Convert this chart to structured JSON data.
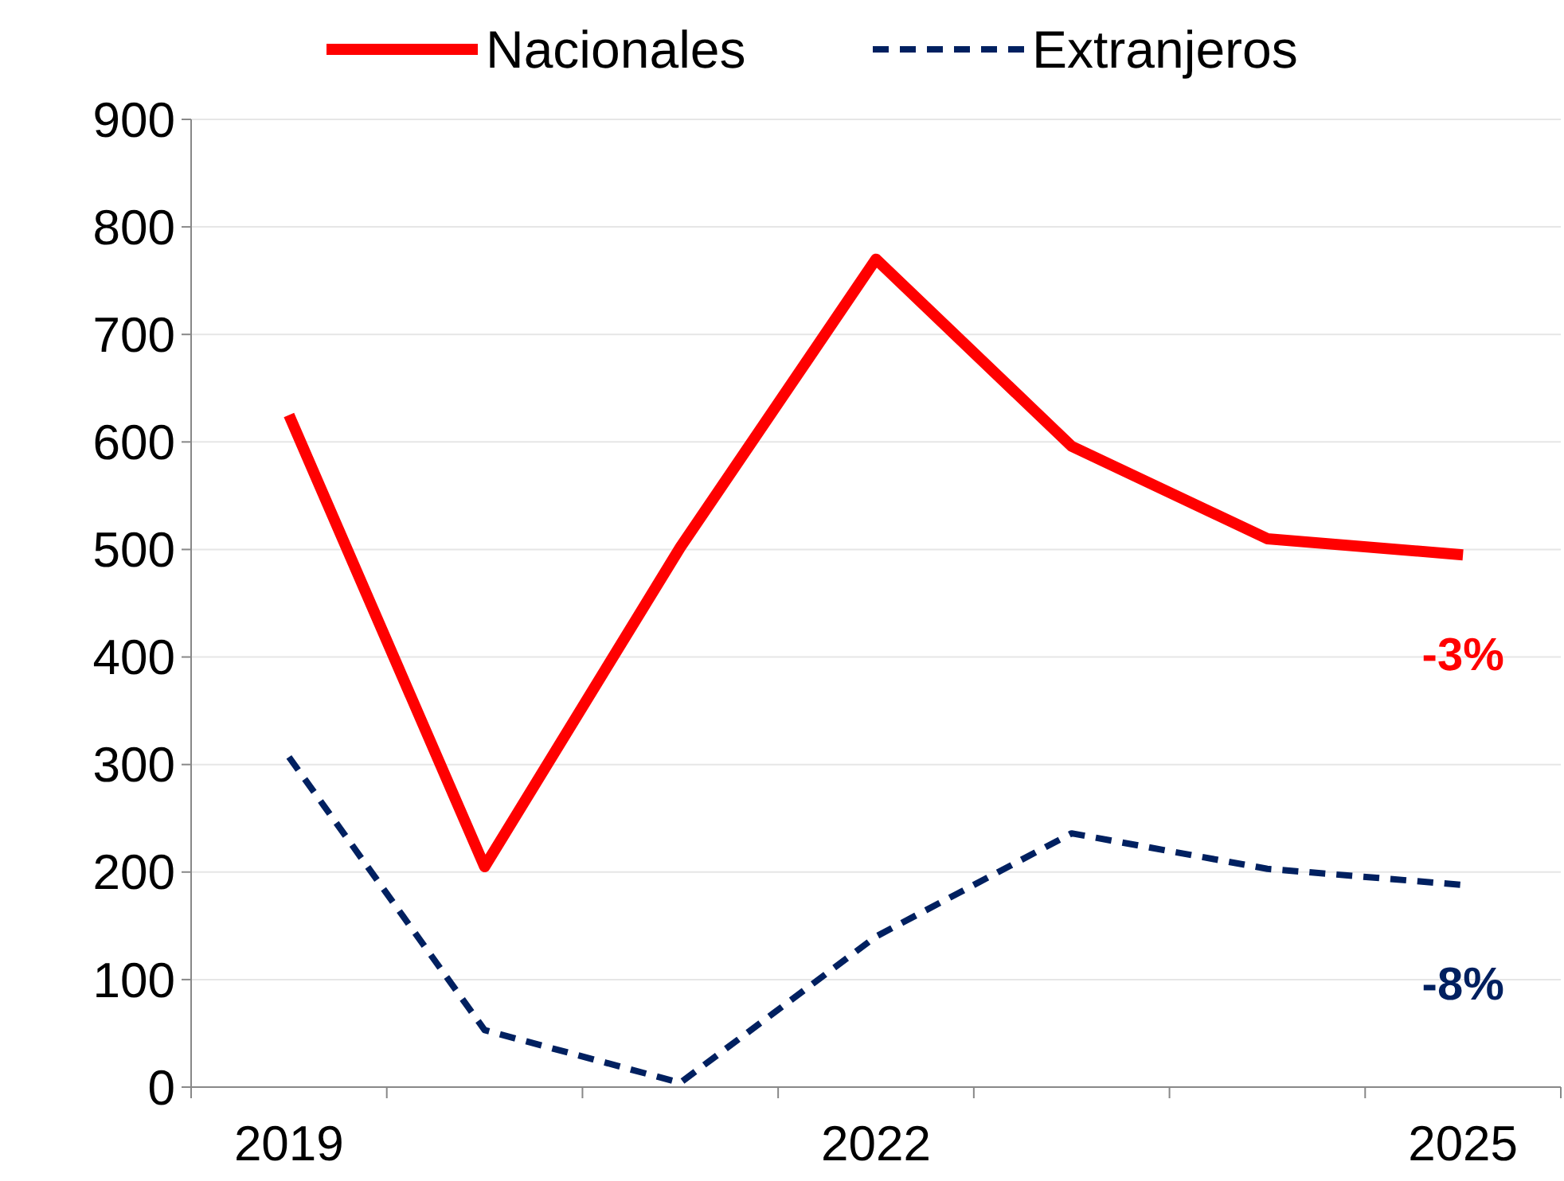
{
  "chart_data": {
    "type": "line",
    "categories": [
      "2019",
      null,
      null,
      "2022",
      null,
      null,
      "2025"
    ],
    "series": [
      {
        "name": "Nacionales",
        "color": "#ff0000",
        "line_style": "solid",
        "values": [
          625,
          205,
          502,
          770,
          596,
          510,
          495
        ]
      },
      {
        "name": "Extranjeros",
        "color": "#002060",
        "line_style": "dashed",
        "values": [
          307,
          53,
          4,
          140,
          236,
          203,
          188
        ]
      }
    ],
    "ylim": [
      0,
      900
    ],
    "yticks": [
      0,
      100,
      200,
      300,
      400,
      500,
      600,
      700,
      800,
      900
    ],
    "grid": "y",
    "legend": "top",
    "marker": "none",
    "annotations": [
      "-3%",
      "-8%"
    ]
  }
}
